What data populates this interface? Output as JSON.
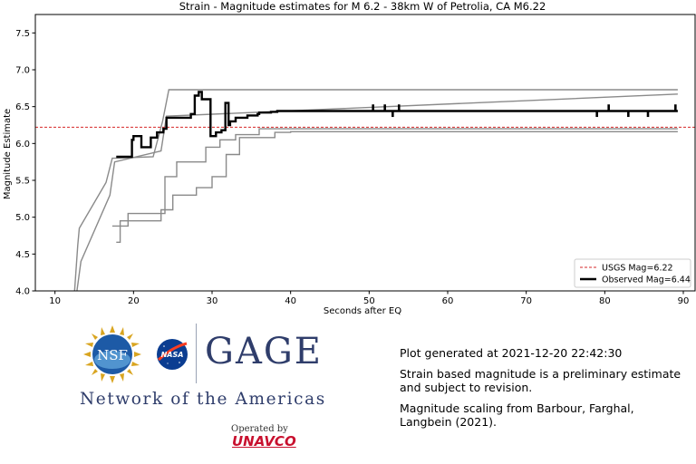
{
  "chart_data": {
    "type": "line",
    "title": "Strain - Magnitude estimates for M 6.2 - 38km W of Petrolia, CA M6.22",
    "xlabel": "Seconds after EQ",
    "ylabel": "Magnitude Estimate",
    "xlim": [
      7.5,
      91.5
    ],
    "ylim": [
      4.0,
      7.75
    ],
    "xticks": [
      10,
      20,
      30,
      40,
      50,
      60,
      70,
      80,
      90
    ],
    "yticks": [
      4.0,
      4.5,
      5.0,
      5.5,
      6.0,
      6.5,
      7.0,
      7.5
    ],
    "xtick_labels": [
      "10",
      "20",
      "30",
      "40",
      "50",
      "60",
      "70",
      "80",
      "90"
    ],
    "ytick_labels": [
      "4.0",
      "4.5",
      "5.0",
      "5.5",
      "6.0",
      "6.5",
      "7.0",
      "7.5"
    ],
    "grid": false,
    "legend_position": "lower-right",
    "series": [
      {
        "name": "USGS Mag=6.22",
        "style": "dashed",
        "color": "#d62728",
        "x": [
          7.5,
          91.5
        ],
        "y": [
          6.22,
          6.22
        ]
      },
      {
        "name": "Observed Mag=6.44",
        "style": "solid-thick",
        "color": "#000000",
        "x": [
          17.8,
          19.8,
          19.8,
          20.0,
          20.0,
          21.0,
          21.0,
          22.2,
          22.2,
          23.0,
          23.0,
          23.8,
          23.8,
          24.2,
          24.2,
          27.3,
          27.3,
          27.8,
          27.8,
          28.3,
          28.3,
          28.7,
          28.7,
          29.8,
          29.8,
          30.5,
          30.5,
          31.2,
          31.2,
          31.7,
          31.7,
          32.1,
          32.1,
          32.3,
          32.3,
          33.0,
          33.0,
          34.5,
          34.5,
          35.8,
          35.8,
          36.0,
          36.0,
          37.5,
          37.5,
          38.3,
          38.3,
          40.0,
          40.0,
          89.3
        ],
        "y": [
          5.82,
          5.82,
          6.05,
          6.05,
          6.1,
          6.1,
          5.95,
          5.95,
          6.08,
          6.08,
          6.15,
          6.15,
          6.2,
          6.2,
          6.35,
          6.35,
          6.4,
          6.4,
          6.65,
          6.65,
          6.7,
          6.7,
          6.6,
          6.6,
          6.1,
          6.1,
          6.15,
          6.15,
          6.18,
          6.18,
          6.55,
          6.55,
          6.25,
          6.25,
          6.3,
          6.3,
          6.35,
          6.35,
          6.38,
          6.38,
          6.4,
          6.4,
          6.42,
          6.42,
          6.43,
          6.43,
          6.44,
          6.44,
          6.44,
          6.44
        ]
      },
      {
        "name": "",
        "style": "solid-gray",
        "color": "#8a8a8a",
        "x": [
          12.5,
          12.9,
          12.9,
          13.1,
          13.1,
          16.5,
          16.5,
          17.3,
          17.3,
          22.5,
          22.5,
          23.7,
          23.7,
          24.5,
          24.5,
          89.3
        ],
        "y": [
          4.0,
          4.62,
          4.62,
          4.85,
          4.85,
          5.47,
          5.47,
          5.8,
          5.8,
          5.82,
          5.82,
          6.3,
          6.3,
          6.73,
          6.73,
          6.73
        ]
      },
      {
        "name": "",
        "style": "solid-gray",
        "color": "#8a8a8a",
        "x": [
          12.8,
          13.3,
          13.3,
          17.0,
          17.0,
          17.6,
          17.6,
          23.5,
          23.5,
          24.2,
          24.2,
          89.3
        ],
        "y": [
          4.0,
          4.4,
          4.4,
          5.3,
          5.3,
          5.75,
          5.75,
          5.9,
          5.9,
          6.37,
          6.37,
          6.67
        ]
      },
      {
        "name": "",
        "style": "solid-gray",
        "color": "#8a8a8a",
        "x": [
          17.3,
          19.3,
          19.3,
          24.0,
          24.0,
          25.5,
          25.5,
          29.2,
          29.2,
          31.0,
          31.0,
          33.0,
          33.0,
          36.0,
          36.0,
          89.3
        ],
        "y": [
          4.88,
          4.88,
          5.05,
          5.05,
          5.55,
          5.55,
          5.75,
          5.75,
          5.95,
          5.95,
          6.05,
          6.05,
          6.12,
          6.12,
          6.2,
          6.2
        ]
      },
      {
        "name": "",
        "style": "solid-gray",
        "color": "#8a8a8a",
        "x": [
          17.8,
          18.3,
          18.3,
          23.5,
          23.5,
          25.0,
          25.0,
          28.0,
          28.0,
          30.0,
          30.0,
          31.8,
          31.8,
          33.5,
          33.5,
          38.0,
          38.0,
          40.0,
          40.0,
          89.3
        ],
        "y": [
          4.66,
          4.66,
          4.95,
          4.95,
          5.1,
          5.1,
          5.3,
          5.3,
          5.4,
          5.4,
          5.55,
          5.55,
          5.85,
          5.85,
          6.08,
          6.08,
          6.15,
          6.15,
          6.16,
          6.16
        ]
      }
    ],
    "spikes": {
      "color": "#000000",
      "x": [
        50.5,
        52.0,
        53.0,
        53.8,
        79.0,
        80.5,
        83.0,
        85.5,
        89.0
      ],
      "y_low": [
        6.44,
        6.44,
        6.36,
        6.44,
        6.36,
        6.44,
        6.36,
        6.36,
        6.44
      ],
      "y_high": [
        6.53,
        6.53,
        6.44,
        6.53,
        6.44,
        6.53,
        6.44,
        6.44,
        6.53
      ]
    }
  },
  "logos": {
    "nsf_text": "NSF",
    "nasa_text": "NASA",
    "gage": "GAGE",
    "network": "Network of the Americas",
    "operated_by": "Operated by",
    "unavco": "UNAVCO"
  },
  "info": {
    "generated": "Plot generated at 2021-12-20 22:42:30",
    "disclaimer": "Strain based magnitude is a preliminary estimate and subject to revision.",
    "scaling": "Magnitude scaling from Barbour, Farghal, Langbein (2021)."
  }
}
